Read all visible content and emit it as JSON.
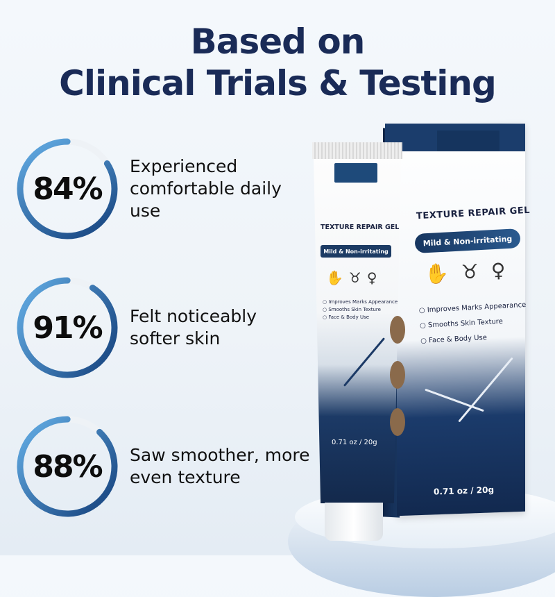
{
  "headline": {
    "line1": "Based on",
    "line2": "Clinical Trials & Testing"
  },
  "stats": [
    {
      "value": "84%",
      "percent": 84,
      "text": "Experienced comfortable daily use"
    },
    {
      "value": "91%",
      "percent": 91,
      "text": "Felt noticeably softer skin"
    },
    {
      "value": "88%",
      "percent": 88,
      "text": "Saw smoother, more even texture"
    }
  ],
  "product": {
    "name": "TEXTURE REPAIR GEL",
    "tagline_box": "Mild & Non-irritating",
    "tagline_tube": "Mild & Non-irritating",
    "benefits": [
      "Improves Marks Appearance",
      "Smooths Skin Texture",
      "Face & Body Use"
    ],
    "weight": "0.71 oz / 20g",
    "icons": [
      "hand-icon",
      "hips-icon",
      "pregnant-body-icon"
    ]
  },
  "colors": {
    "title": "#1a2b57",
    "ring_start": "#5aa0d8",
    "ring_end": "#1f4f8a",
    "box_navy": "#1b3d6c"
  }
}
